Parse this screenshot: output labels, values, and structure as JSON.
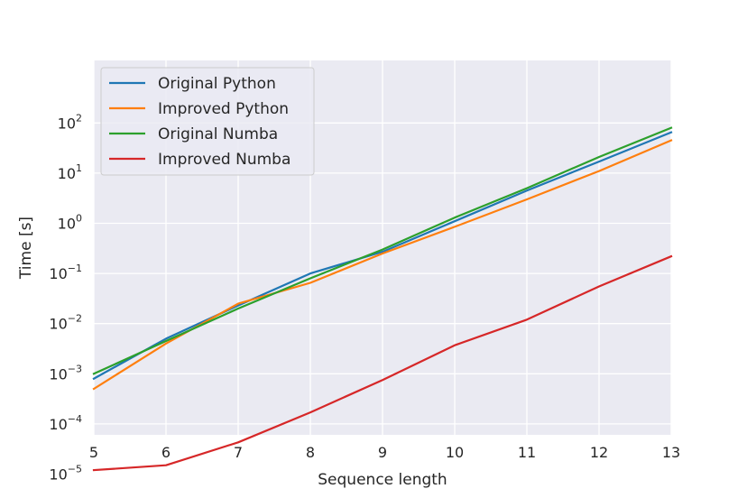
{
  "chart_data": {
    "type": "line",
    "xlabel": "Sequence length",
    "ylabel": "Time [s]",
    "xlim": [
      5,
      13
    ],
    "ylim": [
      5e-06,
      200
    ],
    "yscale": "log",
    "grid": true,
    "legend_position": "top-left",
    "x_ticks": [
      "5",
      "6",
      "7",
      "8",
      "9",
      "10",
      "11",
      "12",
      "13"
    ],
    "y_ticks": [
      {
        "value": 1e-05,
        "base": "10",
        "exp": "−5"
      },
      {
        "value": 0.0001,
        "base": "10",
        "exp": "−4"
      },
      {
        "value": 0.001,
        "base": "10",
        "exp": "−3"
      },
      {
        "value": 0.01,
        "base": "10",
        "exp": "−2"
      },
      {
        "value": 0.1,
        "base": "10",
        "exp": "−1"
      },
      {
        "value": 1,
        "base": "10",
        "exp": "0"
      },
      {
        "value": 10,
        "base": "10",
        "exp": "1"
      },
      {
        "value": 100,
        "base": "10",
        "exp": "2"
      }
    ],
    "x": [
      5,
      6,
      7,
      8,
      9,
      10,
      11,
      12,
      13
    ],
    "series": [
      {
        "name": "Original Python",
        "color": "#1f77b4",
        "values": [
          0.0008,
          0.005,
          0.023,
          0.1,
          0.27,
          1.1,
          4.5,
          17,
          65
        ]
      },
      {
        "name": "Improved Python",
        "color": "#ff7f0e",
        "values": [
          0.0005,
          0.004,
          0.025,
          0.065,
          0.25,
          0.85,
          3,
          11,
          45
        ]
      },
      {
        "name": "Original Numba",
        "color": "#2ca02c",
        "values": [
          0.001,
          0.0045,
          0.02,
          0.08,
          0.3,
          1.3,
          5,
          21,
          80
        ]
      },
      {
        "name": "Improved Numba",
        "color": "#d62728",
        "values": [
          1.2e-05,
          1.5e-05,
          4.3e-05,
          0.00017,
          0.00075,
          0.0037,
          0.012,
          0.055,
          0.22
        ]
      }
    ]
  }
}
